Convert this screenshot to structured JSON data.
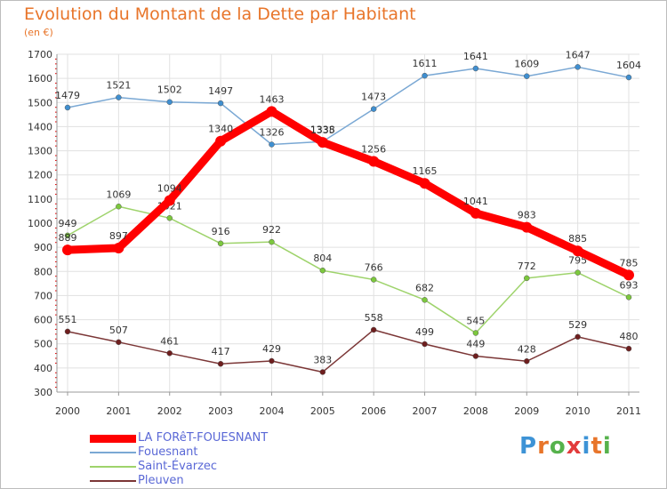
{
  "title": "Evolution du Montant de la Dette par Habitant",
  "unit_label": "(en €)",
  "brand": {
    "text": "Proxiti",
    "letter_colors": [
      "#3d93d6",
      "#e8752a",
      "#56b24c",
      "#e23b3b",
      "#3d93d6",
      "#e8752a",
      "#56b24c"
    ]
  },
  "chart_data": {
    "type": "line",
    "title": "Evolution du Montant de la Dette par Habitant",
    "ylabel": "(en €)",
    "xlabel": "",
    "x": [
      "2000",
      "2001",
      "2002",
      "2003",
      "2004",
      "2005",
      "2006",
      "2007",
      "2008",
      "2009",
      "2010",
      "2011"
    ],
    "ylim": [
      300,
      1700
    ],
    "yticks": [
      300,
      400,
      500,
      600,
      700,
      800,
      900,
      1000,
      1100,
      1200,
      1300,
      1400,
      1500,
      1600,
      1700
    ],
    "grid": true,
    "legend_position": "bottom-left",
    "series": [
      {
        "name": "LA FORêT-FOUESNANT",
        "color": "#ff0000",
        "marker_fill": "#ff0000",
        "emphasis": true,
        "values": [
          889,
          897,
          1094,
          1340,
          1463,
          1335,
          1256,
          1165,
          1041,
          983,
          885,
          785
        ]
      },
      {
        "name": "Fouesnant",
        "color": "#7aa8d4",
        "marker_fill": "#3f8fd0",
        "emphasis": false,
        "values": [
          1479,
          1521,
          1502,
          1497,
          1326,
          1338,
          1473,
          1611,
          1641,
          1609,
          1647,
          1604
        ]
      },
      {
        "name": "Saint-Évarzec",
        "color": "#9ed36b",
        "marker_fill": "#7cc83d",
        "emphasis": false,
        "values": [
          949,
          1069,
          1021,
          916,
          922,
          804,
          766,
          682,
          545,
          772,
          795,
          693
        ]
      },
      {
        "name": "Pleuven",
        "color": "#7b3636",
        "marker_fill": "#6e1e1e",
        "emphasis": false,
        "values": [
          551,
          507,
          461,
          417,
          429,
          383,
          558,
          499,
          449,
          428,
          529,
          480
        ]
      }
    ]
  }
}
